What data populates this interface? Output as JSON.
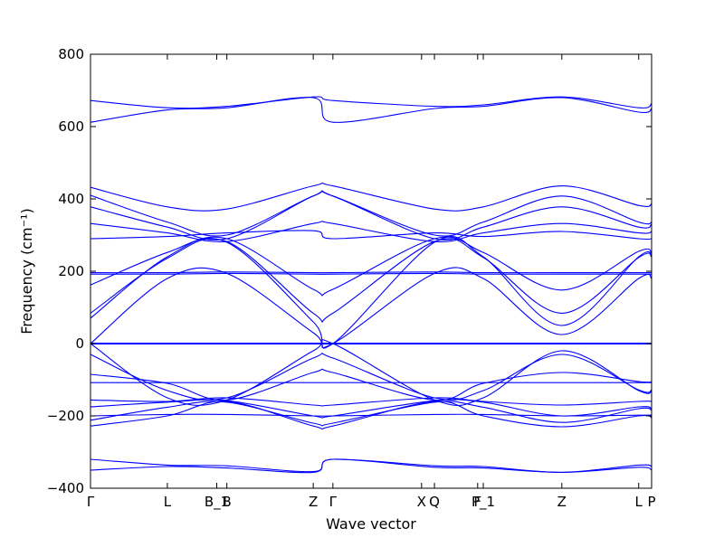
{
  "chart_data": {
    "type": "line",
    "title": "",
    "xlabel": "Wave vector",
    "ylabel": "Frequency (cm⁻¹)",
    "ylim": [
      -400,
      800
    ],
    "xlim": [
      0,
      1
    ],
    "yticks": [
      "800",
      "600",
      "400",
      "200",
      "0",
      "−200",
      "−400"
    ],
    "ytick_values": [
      800,
      600,
      400,
      200,
      0,
      -200,
      -400
    ],
    "high_symmetry_points": [
      {
        "label": "Γ",
        "x": 0.0
      },
      {
        "label": "L",
        "x": 0.137
      },
      {
        "label": "B_1",
        "x": 0.225
      },
      {
        "label": "B",
        "x": 0.243
      },
      {
        "label": "Z",
        "x": 0.397
      },
      {
        "label": "Γ",
        "x": 0.432
      },
      {
        "label": "X",
        "x": 0.59
      },
      {
        "label": "Q",
        "x": 0.613
      },
      {
        "label": "F",
        "x": 0.69
      },
      {
        "label": "P_1",
        "x": 0.7
      },
      {
        "label": "Z",
        "x": 0.84
      },
      {
        "label": "L",
        "x": 0.977
      },
      {
        "label": "P",
        "x": 1.0
      }
    ],
    "series_color": "#0000ff",
    "grid": false,
    "series": [
      {
        "x": [
          0,
          0.137,
          0.243,
          0.397,
          0.432,
          0.613,
          0.7,
          0.84,
          0.977,
          1.0
        ],
        "y": [
          672,
          652,
          656,
          682,
          672,
          656,
          660,
          682,
          652,
          664
        ]
      },
      {
        "x": [
          0,
          0.137,
          0.243,
          0.397,
          0.432,
          0.613,
          0.7,
          0.84,
          0.977,
          1.0
        ],
        "y": [
          612,
          646,
          652,
          680,
          612,
          650,
          656,
          680,
          640,
          650
        ]
      },
      {
        "x": [
          0,
          0.137,
          0.243,
          0.397,
          0.432,
          0.613,
          0.7,
          0.84,
          0.977,
          1.0
        ],
        "y": [
          432,
          378,
          372,
          436,
          436,
          372,
          378,
          436,
          382,
          386
        ]
      },
      {
        "x": [
          0,
          0.137,
          0.243,
          0.397,
          0.432,
          0.613,
          0.7,
          0.84,
          0.977,
          1.0
        ],
        "y": [
          410,
          336,
          300,
          408,
          408,
          300,
          336,
          408,
          336,
          336
        ]
      },
      {
        "x": [
          0,
          0.137,
          0.243,
          0.397,
          0.432,
          0.613,
          0.7,
          0.84,
          0.977,
          1.0
        ],
        "y": [
          378,
          322,
          290,
          408,
          408,
          290,
          322,
          378,
          322,
          330
        ]
      },
      {
        "x": [
          0,
          0.137,
          0.243,
          0.397,
          0.432,
          0.613,
          0.7,
          0.84,
          0.977,
          1.0
        ],
        "y": [
          332,
          306,
          282,
          332,
          332,
          282,
          306,
          332,
          306,
          310
        ]
      },
      {
        "x": [
          0,
          0.137,
          0.243,
          0.397,
          0.432,
          0.613,
          0.7,
          0.84,
          0.977,
          1.0
        ],
        "y": [
          290,
          296,
          306,
          312,
          290,
          306,
          296,
          310,
          290,
          290
        ]
      },
      {
        "x": [
          0,
          0.137,
          0.243,
          0.397,
          0.432,
          0.613,
          0.7,
          0.84,
          0.977,
          1.0
        ],
        "y": [
          162,
          252,
          290,
          150,
          150,
          290,
          252,
          148,
          255,
          250
        ]
      },
      {
        "x": [
          0,
          0.137,
          0.243,
          0.397,
          0.432,
          0.613,
          0.7,
          0.84,
          0.977,
          1.0
        ],
        "y": [
          84,
          236,
          282,
          84,
          84,
          282,
          238,
          84,
          238,
          240
        ]
      },
      {
        "x": [
          0,
          0.137,
          0.243,
          0.397,
          0.432,
          0.613,
          0.7,
          0.84,
          0.977,
          1.0
        ],
        "y": [
          196,
          196,
          198,
          196,
          196,
          198,
          196,
          196,
          196,
          196
        ]
      },
      {
        "x": [
          0,
          0.137,
          0.243,
          0.397,
          0.432,
          0.613,
          0.7,
          0.84,
          0.977,
          1.0
        ],
        "y": [
          192,
          192,
          194,
          192,
          192,
          194,
          192,
          192,
          192,
          192
        ]
      },
      {
        "x": [
          0,
          0.137,
          0.243,
          0.397,
          0.432,
          0.613,
          0.7,
          0.84,
          0.977,
          1.0
        ],
        "y": [
          70,
          240,
          280,
          60,
          0,
          280,
          240,
          50,
          240,
          240
        ]
      },
      {
        "x": [
          0,
          0.137,
          0.243,
          0.397,
          0.432,
          0.613,
          0.7,
          0.84,
          0.977,
          1.0
        ],
        "y": [
          0,
          180,
          194,
          30,
          0,
          194,
          180,
          25,
          180,
          180
        ]
      },
      {
        "x": [
          0,
          1.0
        ],
        "y": [
          0,
          0
        ]
      },
      {
        "x": [
          0,
          0.137,
          0.243,
          0.397,
          0.432,
          0.613,
          0.7,
          0.84,
          0.977,
          1.0
        ],
        "y": [
          0,
          -150,
          -156,
          -20,
          0,
          -156,
          -150,
          -20,
          -130,
          -130
        ]
      },
      {
        "x": [
          0,
          0.137,
          0.243,
          0.397,
          0.432,
          0.613,
          0.7,
          0.84,
          0.977,
          1.0
        ],
        "y": [
          -30,
          -130,
          -150,
          -40,
          -40,
          -150,
          -130,
          -30,
          -128,
          -128
        ]
      },
      {
        "x": [
          0,
          0.137,
          0.243,
          0.397,
          0.432,
          0.613,
          0.7,
          0.84,
          0.977,
          1.0
        ],
        "y": [
          -85,
          -110,
          -156,
          -80,
          -80,
          -156,
          -110,
          -80,
          -105,
          -105
        ]
      },
      {
        "x": [
          0,
          0.137,
          0.243,
          0.397,
          0.432,
          0.613,
          0.7,
          0.84,
          0.977,
          1.0
        ],
        "y": [
          -108,
          -108,
          -108,
          -108,
          -108,
          -108,
          -108,
          -108,
          -108,
          -108
        ]
      },
      {
        "x": [
          0,
          0.137,
          0.243,
          0.397,
          0.432,
          0.613,
          0.7,
          0.84,
          0.977,
          1.0
        ],
        "y": [
          -156,
          -160,
          -150,
          -170,
          -170,
          -150,
          -160,
          -170,
          -160,
          -160
        ]
      },
      {
        "x": [
          0,
          0.137,
          0.243,
          0.397,
          0.432,
          0.613,
          0.7,
          0.84,
          0.977,
          1.0
        ],
        "y": [
          -175,
          -162,
          -158,
          -200,
          -200,
          -158,
          -162,
          -200,
          -175,
          -180
        ]
      },
      {
        "x": [
          0,
          0.137,
          0.243,
          0.397,
          0.432,
          0.613,
          0.7,
          0.84,
          0.977,
          1.0
        ],
        "y": [
          -212,
          -176,
          -162,
          -220,
          -220,
          -162,
          -176,
          -218,
          -180,
          -185
        ]
      },
      {
        "x": [
          0,
          0.137,
          0.243,
          0.397,
          0.432,
          0.613,
          0.7,
          0.84,
          0.977,
          1.0
        ],
        "y": [
          -200,
          -196,
          -196,
          -200,
          -200,
          -196,
          -196,
          -200,
          -198,
          -198
        ]
      },
      {
        "x": [
          0,
          0.137,
          0.243,
          0.397,
          0.432,
          0.613,
          0.7,
          0.84,
          0.977,
          1.0
        ],
        "y": [
          -228,
          -200,
          -160,
          -228,
          -228,
          -160,
          -200,
          -230,
          -200,
          -205
        ]
      },
      {
        "x": [
          0,
          0.137,
          0.243,
          0.397,
          0.432,
          0.613,
          0.7,
          0.84,
          0.977,
          1.0
        ],
        "y": [
          -320,
          -336,
          -338,
          -354,
          -320,
          -338,
          -340,
          -356,
          -336,
          -340
        ]
      },
      {
        "x": [
          0,
          0.137,
          0.243,
          0.397,
          0.432,
          0.613,
          0.7,
          0.84,
          0.977,
          1.0
        ],
        "y": [
          -350,
          -340,
          -344,
          -356,
          -320,
          -342,
          -344,
          -356,
          -342,
          -350
        ]
      }
    ]
  }
}
